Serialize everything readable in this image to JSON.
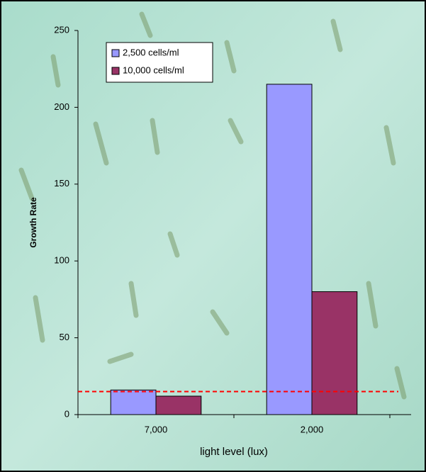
{
  "chart_data": {
    "type": "bar",
    "y_label": "Growth Rate",
    "x_label": "light level (lux)",
    "categories": [
      "7,000",
      "2,000"
    ],
    "series": [
      {
        "name": "2,500 cells/ml",
        "color": "#9999ff",
        "values": [
          16,
          215
        ]
      },
      {
        "name": "10,000 cells/ml",
        "color": "#993366",
        "values": [
          12,
          80
        ]
      }
    ],
    "reference_line": {
      "value": 15,
      "color": "#ff0000"
    },
    "ylim": [
      0,
      250
    ],
    "yticks": [
      0,
      50,
      100,
      150,
      200,
      250
    ],
    "legend": "top-left"
  }
}
